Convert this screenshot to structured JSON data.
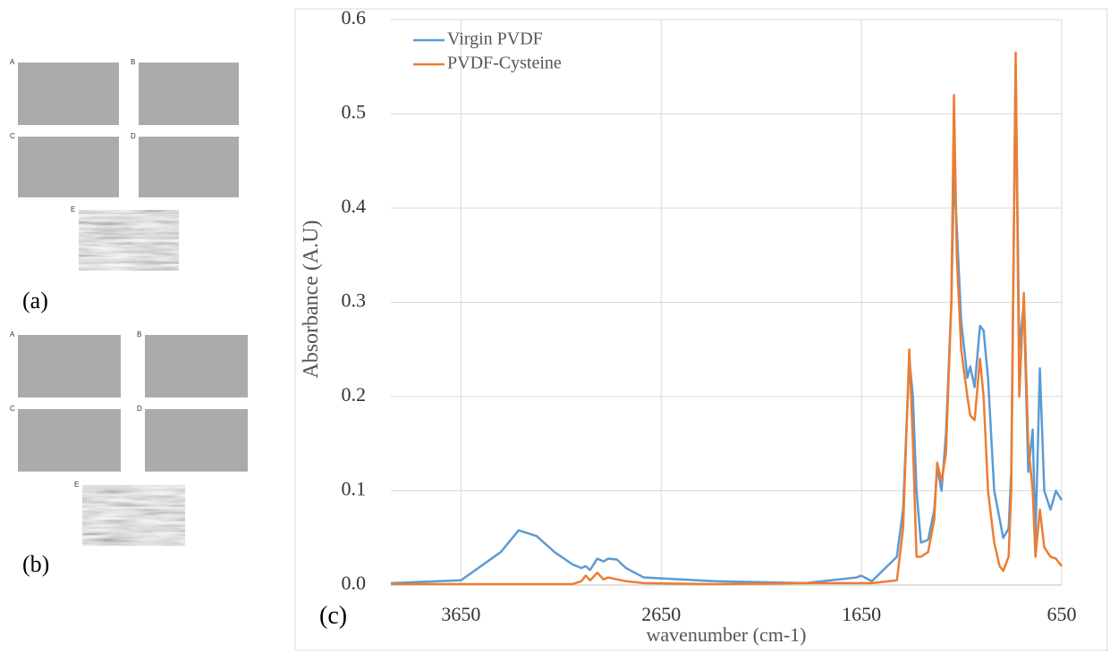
{
  "panels": {
    "a": {
      "label": "(a)",
      "images": [
        "A",
        "B",
        "C",
        "D",
        "E"
      ]
    },
    "b": {
      "label": "(b)",
      "images": [
        "A",
        "B",
        "C",
        "D",
        "E"
      ]
    }
  },
  "chart_data": {
    "type": "line",
    "panel_label": "(c)",
    "xlabel": "wavenumber (cm-1)",
    "ylabel": "Absorbance (A.U)",
    "xlim": [
      4000,
      650
    ],
    "ylim": [
      0,
      0.6
    ],
    "xticks": [
      3650,
      2650,
      1650,
      650
    ],
    "yticks": [
      {
        "value": 0,
        "label": "0.0"
      },
      0.1,
      0.2,
      0.3,
      0.4,
      0.5,
      0.6
    ],
    "grid": true,
    "legend": "upper left",
    "x": [
      4000,
      3650,
      3451,
      3362,
      3272,
      3183,
      3094,
      3049,
      3027,
      3005,
      2969,
      2938,
      2915,
      2871,
      2826,
      2737,
      2380,
      1933,
      1674,
      1652,
      1598,
      1473,
      1442,
      1411,
      1393,
      1375,
      1353,
      1317,
      1286,
      1272,
      1250,
      1228,
      1201,
      1188,
      1174,
      1152,
      1121,
      1107,
      1085,
      1058,
      1040,
      1018,
      987,
      960,
      942,
      915,
      902,
      880,
      862,
      839,
      817,
      795,
      781,
      759,
      737,
      706,
      679,
      650
    ],
    "series": [
      {
        "name": "Virgin PVDF",
        "color": "#5b9bd5",
        "values": [
          0.002,
          0.005,
          0.035,
          0.058,
          0.052,
          0.035,
          0.022,
          0.018,
          0.02,
          0.016,
          0.028,
          0.025,
          0.028,
          0.027,
          0.018,
          0.008,
          0.004,
          0.002,
          0.008,
          0.01,
          0.004,
          0.03,
          0.08,
          0.24,
          0.2,
          0.1,
          0.045,
          0.048,
          0.08,
          0.125,
          0.1,
          0.16,
          0.3,
          0.44,
          0.38,
          0.28,
          0.22,
          0.232,
          0.21,
          0.275,
          0.27,
          0.22,
          0.1,
          0.07,
          0.05,
          0.06,
          0.12,
          0.55,
          0.25,
          0.3,
          0.12,
          0.165,
          0.05,
          0.23,
          0.1,
          0.08,
          0.1,
          0.09
        ]
      },
      {
        "name": "PVDF-Cysteine",
        "color": "#ed7d31",
        "values": [
          0.001,
          0.001,
          0.001,
          0.001,
          0.001,
          0.001,
          0.001,
          0.004,
          0.01,
          0.005,
          0.013,
          0.006,
          0.008,
          0.006,
          0.004,
          0.002,
          0.001,
          0.002,
          0.002,
          0.002,
          0.002,
          0.005,
          0.06,
          0.25,
          0.15,
          0.03,
          0.03,
          0.035,
          0.07,
          0.13,
          0.11,
          0.14,
          0.3,
          0.52,
          0.35,
          0.25,
          0.2,
          0.18,
          0.175,
          0.24,
          0.2,
          0.1,
          0.045,
          0.02,
          0.015,
          0.03,
          0.1,
          0.565,
          0.2,
          0.31,
          0.15,
          0.1,
          0.03,
          0.08,
          0.04,
          0.03,
          0.028,
          0.02
        ]
      }
    ]
  }
}
